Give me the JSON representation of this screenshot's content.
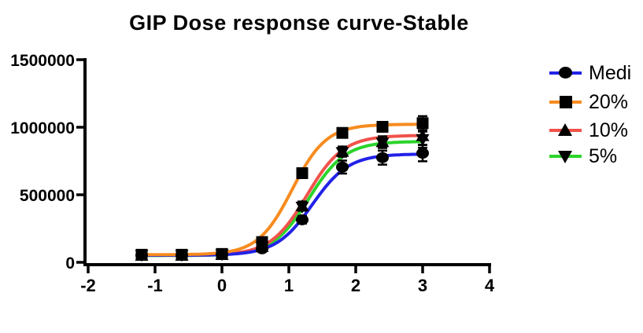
{
  "title": "GIP Dose response curve-Stable",
  "legend": {
    "items": [
      {
        "label": "Medi",
        "marker": "circle",
        "line_color": "#2222E8"
      },
      {
        "label": "20%",
        "marker": "square",
        "line_color": "#F78B1F"
      },
      {
        "label": "10%",
        "marker": "triangle-up",
        "line_color": "#F0524A"
      },
      {
        "label": "5%",
        "marker": "triangle-down",
        "line_color": "#2BD42B"
      }
    ]
  },
  "chart_data": {
    "type": "line",
    "title": "GIP Dose response curve-Stable",
    "xlabel": "",
    "ylabel": "",
    "xlim": [
      -2,
      4
    ],
    "ylim": [
      0,
      1500000
    ],
    "grid": false,
    "legend_position": "right",
    "x_tick_values": [
      -2,
      -1,
      0,
      1,
      2,
      3,
      4
    ],
    "x_tick_labels": [
      "-2",
      "-1",
      "0",
      "1",
      "2",
      "3",
      "4"
    ],
    "y_tick_values": [
      1500000,
      1000000,
      500000,
      0
    ],
    "y_tick_labels": [
      "1500000",
      "1000000",
      "500000",
      "0"
    ],
    "x": [
      -1.2,
      -0.6,
      0,
      0.6,
      1.2,
      1.8,
      2.4,
      3
    ],
    "series": [
      {
        "name": "Medi",
        "marker": "circle",
        "color": "#2222E8",
        "values": [
          52000,
          52000,
          58000,
          100000,
          315000,
          705000,
          775000,
          808000
        ],
        "yerr": [
          6000,
          7000,
          8000,
          10000,
          28000,
          48000,
          52000,
          60000
        ],
        "fit": {
          "bottom": 52000,
          "top": 802000,
          "logec50": 1.35,
          "hill": 1.6
        }
      },
      {
        "name": "20%",
        "marker": "square",
        "color": "#F78B1F",
        "values": [
          56000,
          56000,
          62000,
          150000,
          660000,
          958000,
          1003000,
          1030000
        ],
        "yerr": [
          7000,
          7000,
          8000,
          10000,
          18000,
          22000,
          28000,
          52000
        ],
        "fit": {
          "bottom": 56000,
          "top": 1022000,
          "logec50": 1.05,
          "hill": 1.7
        }
      },
      {
        "name": "10%",
        "marker": "triangle-up",
        "color": "#F0524A",
        "values": [
          52000,
          52000,
          58000,
          118000,
          420000,
          822000,
          893000,
          938000
        ],
        "yerr": [
          6000,
          6000,
          8000,
          10000,
          30000,
          35000,
          40000,
          68000
        ],
        "fit": {
          "bottom": 52000,
          "top": 940000,
          "logec50": 1.27,
          "hill": 1.6
        }
      },
      {
        "name": "5%",
        "marker": "triangle-down",
        "color": "#2BD42B",
        "values": [
          50000,
          50000,
          56000,
          112000,
          408000,
          812000,
          882000,
          908000
        ],
        "yerr": [
          6000,
          6000,
          8000,
          10000,
          26000,
          30000,
          36000,
          60000
        ],
        "fit": {
          "bottom": 50000,
          "top": 895000,
          "logec50": 1.3,
          "hill": 1.6
        }
      }
    ]
  }
}
